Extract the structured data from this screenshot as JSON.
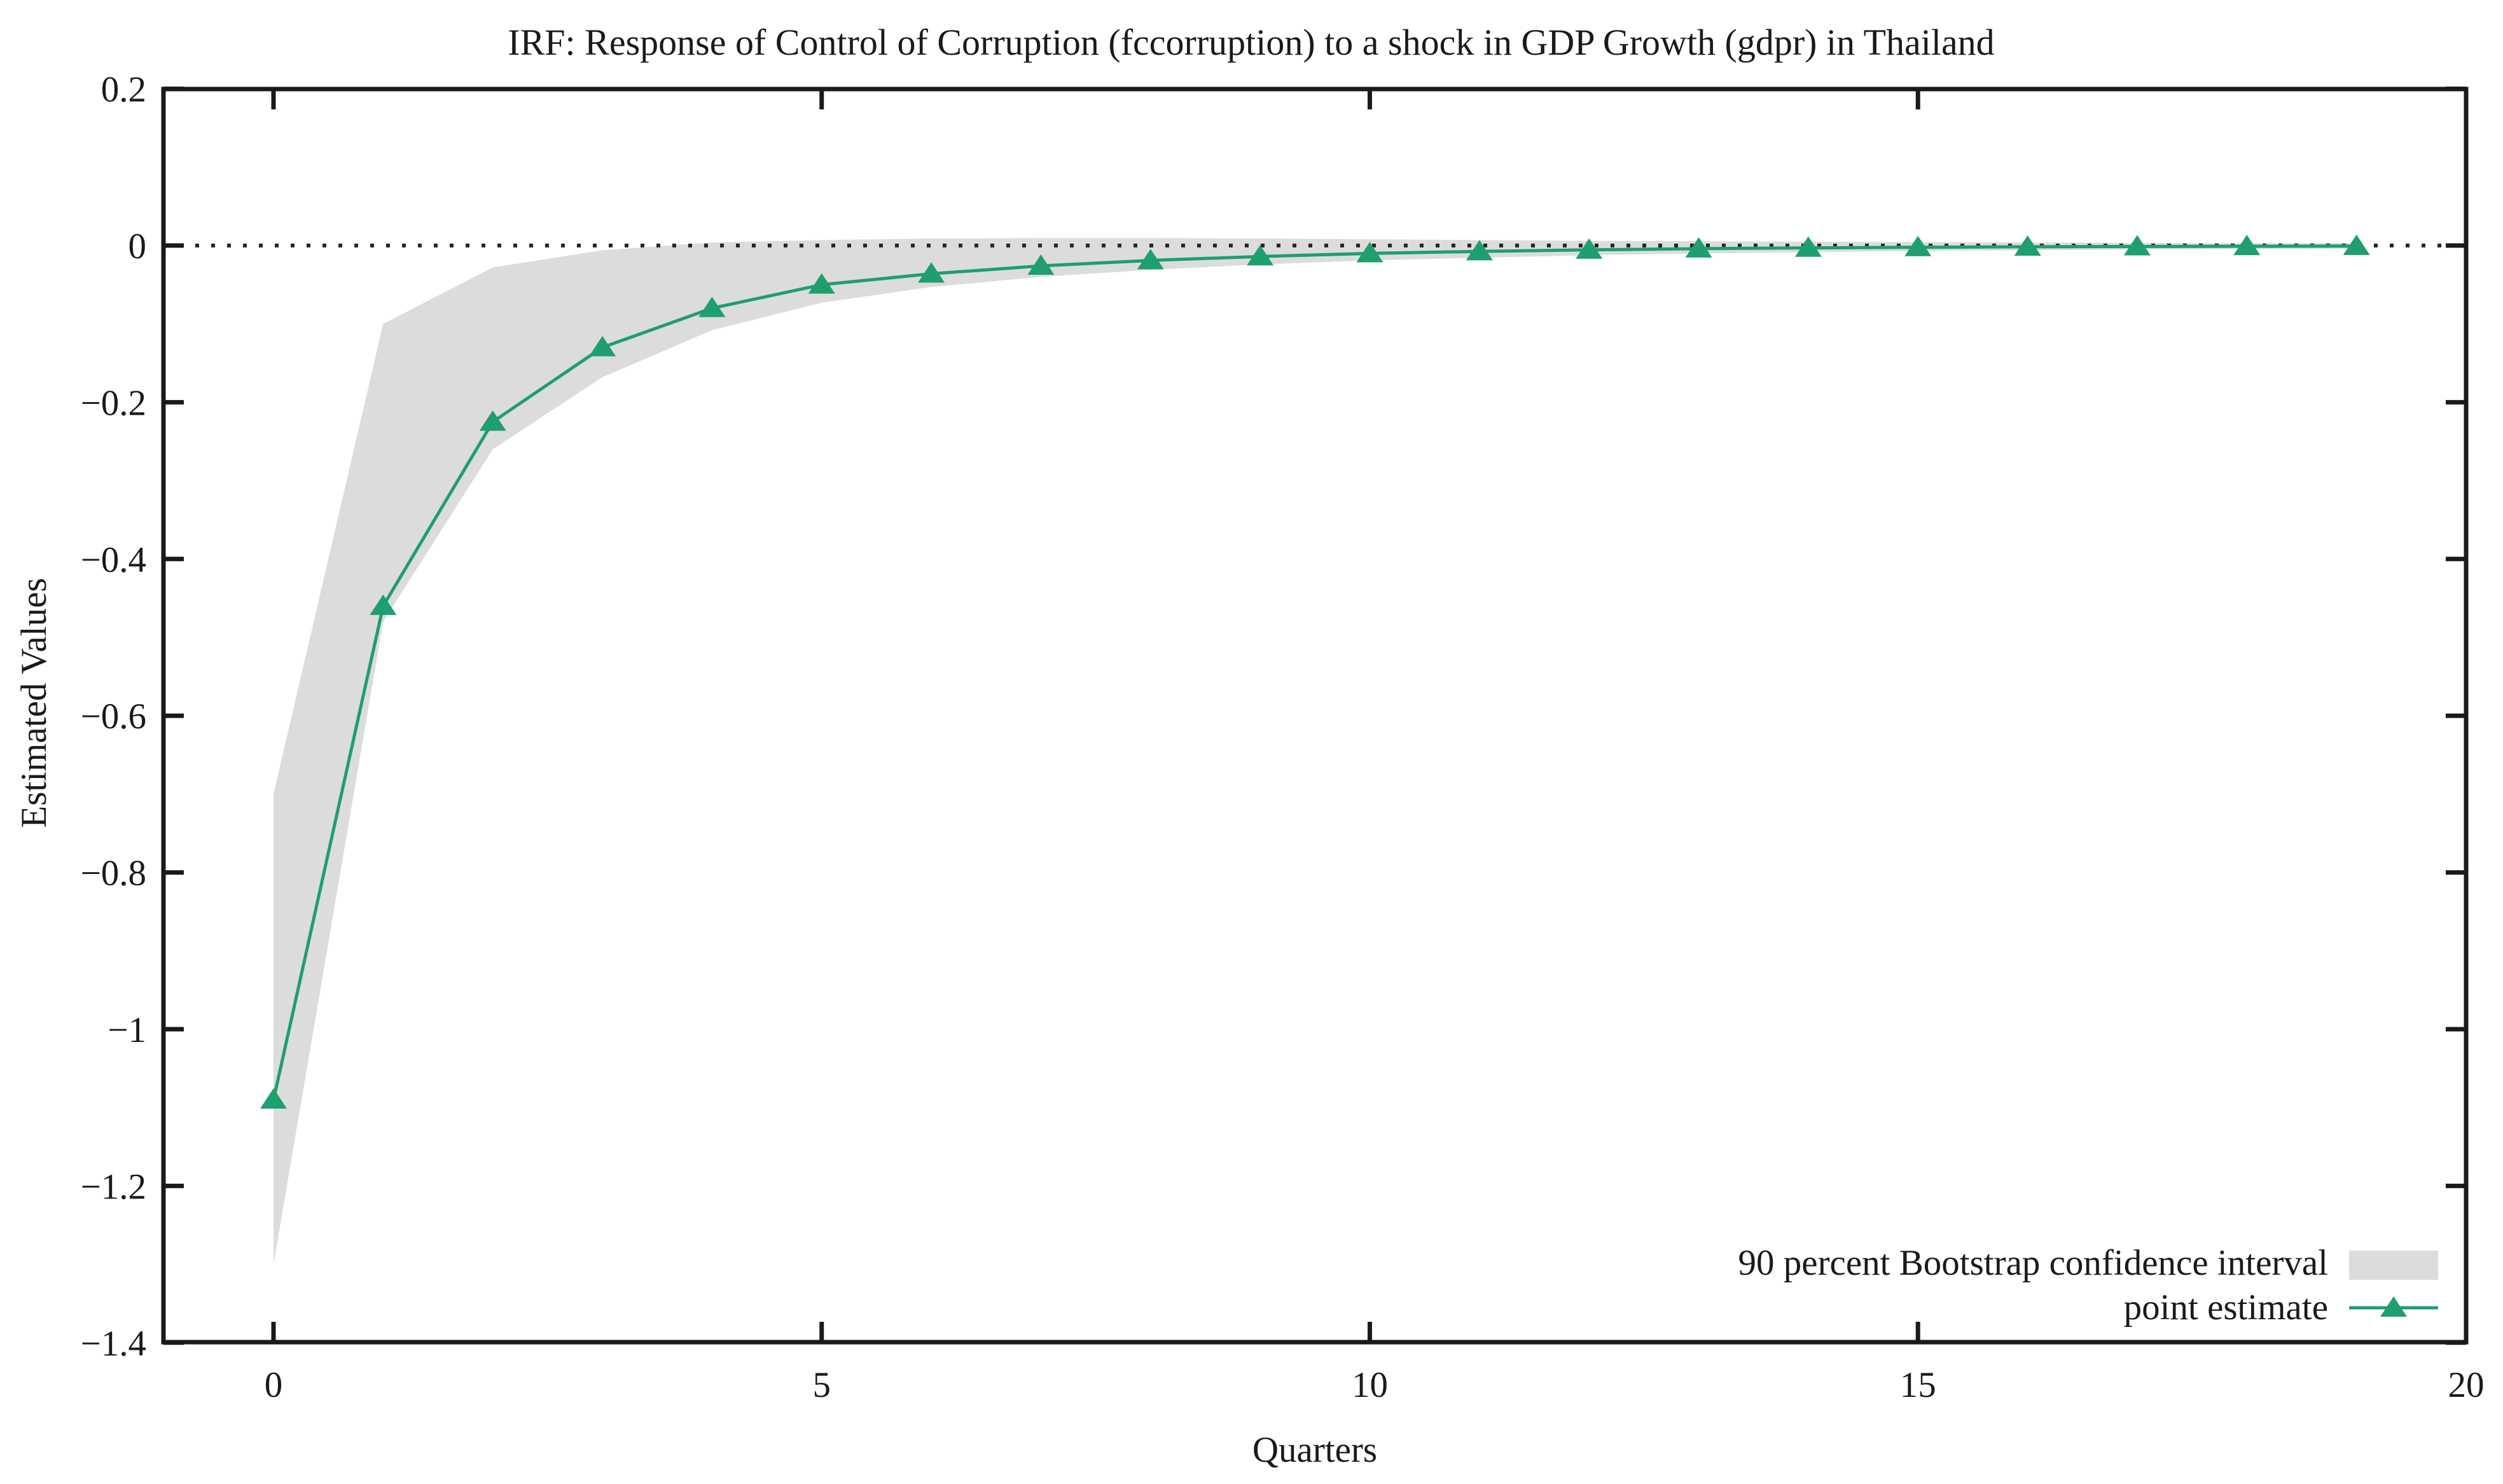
{
  "chart_data": {
    "type": "area+line",
    "title": "IRF: Response of Control of Corruption (fccorruption) to a shock in GDP Growth (gdpr) in Thailand",
    "xlabel": "Quarters",
    "ylabel": "Estimated Values",
    "xlim": [
      -1,
      20
    ],
    "ylim": [
      -1.4,
      0.2
    ],
    "grid": false,
    "zero_line_dotted": true,
    "legend_position": "bottom-right-inside",
    "x": [
      0,
      1,
      2,
      3,
      4,
      5,
      6,
      7,
      8,
      9,
      10,
      11,
      12,
      13,
      14,
      15,
      16,
      17,
      18,
      19
    ],
    "x_ticks": [
      0,
      5,
      10,
      15,
      20
    ],
    "y_ticks": [
      0.2,
      0,
      -0.2,
      -0.4,
      -0.6,
      -0.8,
      -1,
      -1.2,
      -1.4
    ],
    "y_tick_labels": [
      "0.2",
      "0",
      "−0.2",
      "−0.4",
      "−0.6",
      "−0.8",
      "−1",
      "−1.2",
      "−1.4"
    ],
    "x_tick_labels": [
      "0",
      "5",
      "10",
      "15",
      "20"
    ],
    "series": [
      {
        "name": "90 percent Bootstrap confidence interval",
        "type": "band",
        "color": "#dcdcdc",
        "upper": [
          -0.7,
          -0.1,
          -0.028,
          -0.006,
          0.004,
          0.007,
          0.009,
          0.0095,
          0.0095,
          0.009,
          0.008,
          0.007,
          0.006,
          0.0055,
          0.005,
          0.0045,
          0.004,
          0.0035,
          0.003,
          0.003
        ],
        "lower": [
          -1.3,
          -0.48,
          -0.26,
          -0.168,
          -0.108,
          -0.073,
          -0.053,
          -0.04,
          -0.031,
          -0.024,
          -0.019,
          -0.0155,
          -0.0125,
          -0.01,
          -0.0085,
          -0.007,
          -0.006,
          -0.005,
          -0.0045,
          -0.004
        ]
      },
      {
        "name": "point estimate",
        "type": "line",
        "marker": "triangle-up",
        "color": "#1f9e6e",
        "values": [
          -1.09,
          -0.46,
          -0.225,
          -0.13,
          -0.08,
          -0.05,
          -0.036,
          -0.026,
          -0.019,
          -0.014,
          -0.01,
          -0.0075,
          -0.0055,
          -0.004,
          -0.003,
          -0.0022,
          -0.0016,
          -0.0012,
          -0.0009,
          -0.0007
        ]
      }
    ],
    "colors": {
      "background": "#ffffff",
      "border": "#1a1a1a",
      "zero_line": "#262626",
      "text": "#1a1a1a",
      "band": "#dcdcdc",
      "line": "#1f9e6e"
    }
  }
}
